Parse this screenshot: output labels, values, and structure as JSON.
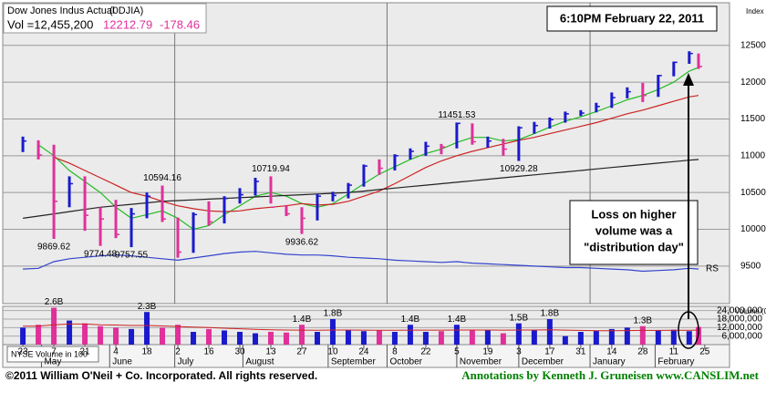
{
  "header": {
    "name": "Dow Jones Indus Actual",
    "symbol": "(0DJIA)",
    "volume": "Vol =12,455,200",
    "price": "12212.79",
    "change": "-178.46",
    "timestamp": "6:10PM February 22, 2011"
  },
  "note": [
    "Loss on higher",
    "volume was a",
    "\"distribution day\""
  ],
  "footer": {
    "copyright": "©2011 William O'Neil + Co. Incorporated. All rights reserved.",
    "credit": "Annotations by Kenneth J. Gruneisen  www.CANSLIM.net"
  },
  "chart_data": [
    {
      "type": "ohlc",
      "y_label": "Index Scale",
      "x": [
        0,
        1,
        2,
        3,
        4,
        5,
        6,
        7,
        8,
        9,
        10,
        11,
        12,
        13,
        14,
        15,
        16,
        17,
        18,
        19,
        20,
        21,
        22,
        23,
        24,
        25,
        26,
        27,
        28,
        29,
        30,
        31,
        32,
        33,
        34,
        35,
        36,
        37,
        38,
        39,
        40,
        41,
        42,
        43,
        43.6
      ],
      "high": [
        11260,
        11210,
        11150,
        10720,
        10720,
        10300,
        10400,
        10290,
        10500,
        10594.16,
        10160,
        10230,
        10380,
        10450,
        10560,
        10700,
        10719.94,
        10330,
        10300,
        10480,
        10510,
        10630,
        10880,
        10950,
        11020,
        11100,
        11190,
        11160,
        11451.53,
        11440,
        11260,
        11230,
        11400,
        11460,
        11520,
        11600,
        11620,
        11720,
        11860,
        11930,
        11990,
        12100,
        12280,
        12420,
        12390
      ],
      "low": [
        11050,
        10950,
        9869.62,
        10300,
        9980,
        9774.48,
        9880,
        9757.55,
        10150,
        10100,
        9614,
        9680,
        10050,
        10080,
        10350,
        10460,
        10350,
        10180,
        9936.62,
        10120,
        10380,
        10420,
        10580,
        10740,
        10800,
        10950,
        11000,
        11020,
        11100,
        11150,
        11110,
        11000,
        10929.28,
        11300,
        11370,
        11450,
        11540,
        11590,
        11650,
        11780,
        11730,
        11800,
        12080,
        12250,
        12180
      ],
      "close": [
        11200,
        11010,
        10380,
        10620,
        10190,
        10140,
        9930,
        10210,
        10450,
        10140,
        9690,
        10200,
        10100,
        10420,
        10470,
        10650,
        10300,
        10210,
        10150,
        10450,
        10460,
        10600,
        10860,
        10830,
        11000,
        11060,
        11130,
        11120,
        11440,
        11190,
        11200,
        11090,
        11380,
        11410,
        11490,
        11570,
        11580,
        11670,
        11790,
        11870,
        11820,
        12090,
        12270,
        12390,
        12212.79
      ],
      "up_color": "#1a1acc",
      "down_color": "#e0309a",
      "lines": [
        {
          "color": "#22bb22",
          "values": [
            null,
            11150,
            11000,
            10800,
            10650,
            10500,
            10300,
            10150,
            10200,
            10250,
            10150,
            10000,
            10050,
            10200,
            10320,
            10450,
            10500,
            10450,
            10350,
            10300,
            10350,
            10480,
            10620,
            10750,
            10850,
            10950,
            11030,
            11090,
            11180,
            11250,
            11250,
            11200,
            11220,
            11300,
            11390,
            11470,
            11530,
            11600,
            11680,
            11760,
            11820,
            11900,
            12000,
            12150,
            12200
          ]
        },
        {
          "color": "#cc2222",
          "values": [
            null,
            null,
            10980,
            10900,
            10800,
            10700,
            10600,
            10500,
            10450,
            10380,
            10320,
            10280,
            10250,
            10240,
            10250,
            10280,
            10300,
            10320,
            10350,
            10330,
            10340,
            10380,
            10450,
            10520,
            10620,
            10730,
            10840,
            10930,
            11000,
            11060,
            11110,
            11160,
            11210,
            11250,
            11300,
            11350,
            11400,
            11450,
            11510,
            11570,
            11620,
            11680,
            11740,
            11800,
            11820
          ]
        },
        {
          "color": "#222222",
          "values": [
            10150,
            10180,
            10210,
            10240,
            10270,
            10300,
            10320,
            10340,
            10360,
            10380,
            10390,
            10400,
            10410,
            10420,
            10430,
            10440,
            10450,
            10460,
            10470,
            10480,
            10490,
            10500,
            10520,
            10540,
            10560,
            10580,
            10600,
            10620,
            10640,
            10660,
            10680,
            10700,
            10720,
            10740,
            10760,
            10780,
            10800,
            10820,
            10840,
            10860,
            10880,
            10900,
            10920,
            10940,
            10950
          ]
        },
        {
          "name": "RS",
          "color": "#3344cc",
          "values": [
            9460,
            9470,
            9560,
            9600,
            9620,
            9640,
            9650,
            9640,
            9620,
            9600,
            9580,
            9610,
            9640,
            9670,
            9690,
            9700,
            9680,
            9660,
            9650,
            9650,
            9640,
            9620,
            9610,
            9600,
            9580,
            9570,
            9560,
            9550,
            9560,
            9540,
            9530,
            9520,
            9510,
            9500,
            9490,
            9480,
            9480,
            9470,
            9460,
            9450,
            9430,
            9440,
            9450,
            9470,
            9460
          ]
        }
      ],
      "annotations": [
        {
          "x": 9,
          "value": 10594.16
        },
        {
          "x": 16,
          "value": 10719.94
        },
        {
          "x": 28,
          "value": 11451.53
        },
        {
          "x": 32,
          "value": 10929.28
        },
        {
          "x": 2,
          "value": 9869.62
        },
        {
          "x": 5,
          "value": 9774.48
        },
        {
          "x": 7,
          "value": 9757.55
        },
        {
          "x": 18,
          "value": 9936.62
        }
      ],
      "xlim": [
        -1.3,
        45.6
      ],
      "ylim": [
        8990,
        13080
      ],
      "yticks": [
        9500,
        10000,
        10500,
        11000,
        11500,
        12000,
        12500
      ],
      "xgrid": [
        9.8,
        23.5,
        36.6
      ],
      "grid": true
    },
    {
      "type": "bar",
      "y_label": "Volume (00)",
      "legend": "NYSE Volume in 100",
      "x": [
        0,
        1,
        2,
        3,
        4,
        5,
        6,
        7,
        8,
        9,
        10,
        11,
        12,
        13,
        14,
        15,
        16,
        17,
        18,
        19,
        20,
        21,
        22,
        23,
        24,
        25,
        26,
        27,
        28,
        29,
        30,
        31,
        32,
        33,
        34,
        35,
        36,
        37,
        38,
        39,
        40,
        41,
        42,
        43,
        43.6
      ],
      "values": [
        12000000,
        14000000,
        26000000,
        17000000,
        15000000,
        13000000,
        12000000,
        11000000,
        23000000,
        12000000,
        14000000,
        9000000,
        11000000,
        10000000,
        9000000,
        8000000,
        9000000,
        8500000,
        14000000,
        9000000,
        18000000,
        10000000,
        9500000,
        10000000,
        9000000,
        14000000,
        9000000,
        9500000,
        14000000,
        10500000,
        10000000,
        8000000,
        15000000,
        10000000,
        18000000,
        6000000,
        9000000,
        10000000,
        11000000,
        12000000,
        13000000,
        10000000,
        10500000,
        9500000,
        12455200
      ],
      "value_labels": [
        null,
        null,
        "2.6B",
        null,
        null,
        null,
        null,
        null,
        "2.3B",
        null,
        null,
        null,
        null,
        null,
        null,
        null,
        null,
        null,
        "1.4B",
        null,
        "1.8B",
        null,
        null,
        null,
        null,
        "1.4B",
        null,
        null,
        "1.4B",
        null,
        null,
        null,
        "1.5B",
        null,
        "1.8B",
        null,
        null,
        null,
        null,
        null,
        "1.3B",
        null,
        null,
        null,
        null
      ],
      "average": {
        "color": "#cc2222",
        "values": [
          13000000,
          13000000,
          14000000,
          14500000,
          14500000,
          14000000,
          13800000,
          13500000,
          13500000,
          13200000,
          12800000,
          12400000,
          12000000,
          11600000,
          11200000,
          10800000,
          10500000,
          10300000,
          10200000,
          10100000,
          10300000,
          10300000,
          10200000,
          10100000,
          10100000,
          10200000,
          10200000,
          10200000,
          10300000,
          10300000,
          10300000,
          10200000,
          10300000,
          10300000,
          10400000,
          10200000,
          10000000,
          9800000,
          9800000,
          9900000,
          10000000,
          10000000,
          10100000,
          10100000,
          10200000
        ]
      },
      "xlim": [
        -1.3,
        45.6
      ],
      "ylim": [
        0,
        27000000
      ],
      "yticks": [
        {
          "value": 24000000,
          "label": "24,000,000"
        },
        {
          "value": 18000000,
          "label": "18,000,000"
        },
        {
          "value": 12000000,
          "label": "12,000,000"
        },
        {
          "value": 6000000,
          "label": "6,000,000"
        }
      ],
      "xticks": [
        {
          "value": 0,
          "label": "23"
        },
        {
          "value": 2,
          "label": "7"
        },
        {
          "value": 4,
          "label": "21"
        },
        {
          "value": 6,
          "label": "4"
        },
        {
          "value": 8,
          "label": "18"
        },
        {
          "value": 10,
          "label": "2"
        },
        {
          "value": 12,
          "label": "16"
        },
        {
          "value": 14,
          "label": "30"
        },
        {
          "value": 16,
          "label": "13"
        },
        {
          "value": 18,
          "label": "27"
        },
        {
          "value": 20,
          "label": "10"
        },
        {
          "value": 22,
          "label": "24"
        },
        {
          "value": 24,
          "label": "8"
        },
        {
          "value": 26,
          "label": "22"
        },
        {
          "value": 28,
          "label": "5"
        },
        {
          "value": 30,
          "label": "19"
        },
        {
          "value": 32,
          "label": "3"
        },
        {
          "value": 34,
          "label": "17"
        },
        {
          "value": 36,
          "label": "31"
        },
        {
          "value": 38,
          "label": "14"
        },
        {
          "value": 40,
          "label": "28"
        },
        {
          "value": 42,
          "label": "11"
        },
        {
          "value": 44,
          "label": "25"
        }
      ],
      "month_ticks": [
        {
          "value": 1.2,
          "label": "May"
        },
        {
          "value": 5.6,
          "label": "June"
        },
        {
          "value": 9.8,
          "label": "July"
        },
        {
          "value": 14.2,
          "label": "August"
        },
        {
          "value": 19.7,
          "label": "September"
        },
        {
          "value": 23.5,
          "label": "October"
        },
        {
          "value": 28,
          "label": "November"
        },
        {
          "value": 32,
          "label": "December"
        },
        {
          "value": 36.6,
          "label": "January"
        },
        {
          "value": 40.8,
          "label": "February"
        }
      ],
      "grid": true
    }
  ]
}
